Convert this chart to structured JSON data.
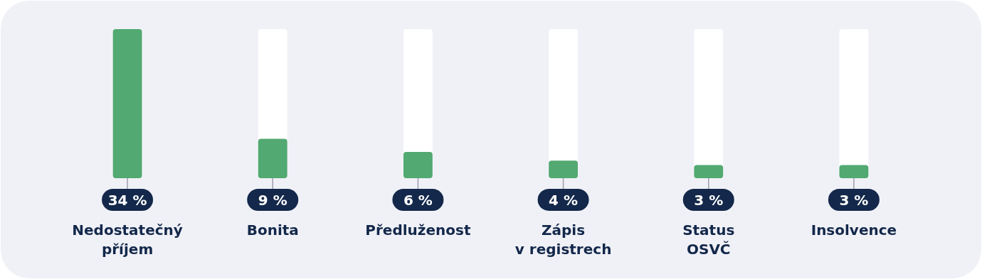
{
  "chart_data": {
    "type": "bar",
    "categories": [
      "Nedostatečný\npříjem",
      "Bonita",
      "Předluženost",
      "Zápis\nv registrech",
      "Status\nOSVČ",
      "Insolvence"
    ],
    "values": [
      34,
      9,
      6,
      4,
      3,
      3
    ],
    "value_labels": [
      "34 %",
      "9 %",
      "6 %",
      "4 %",
      "3 %",
      "3 %"
    ],
    "color": "#52a971"
  }
}
